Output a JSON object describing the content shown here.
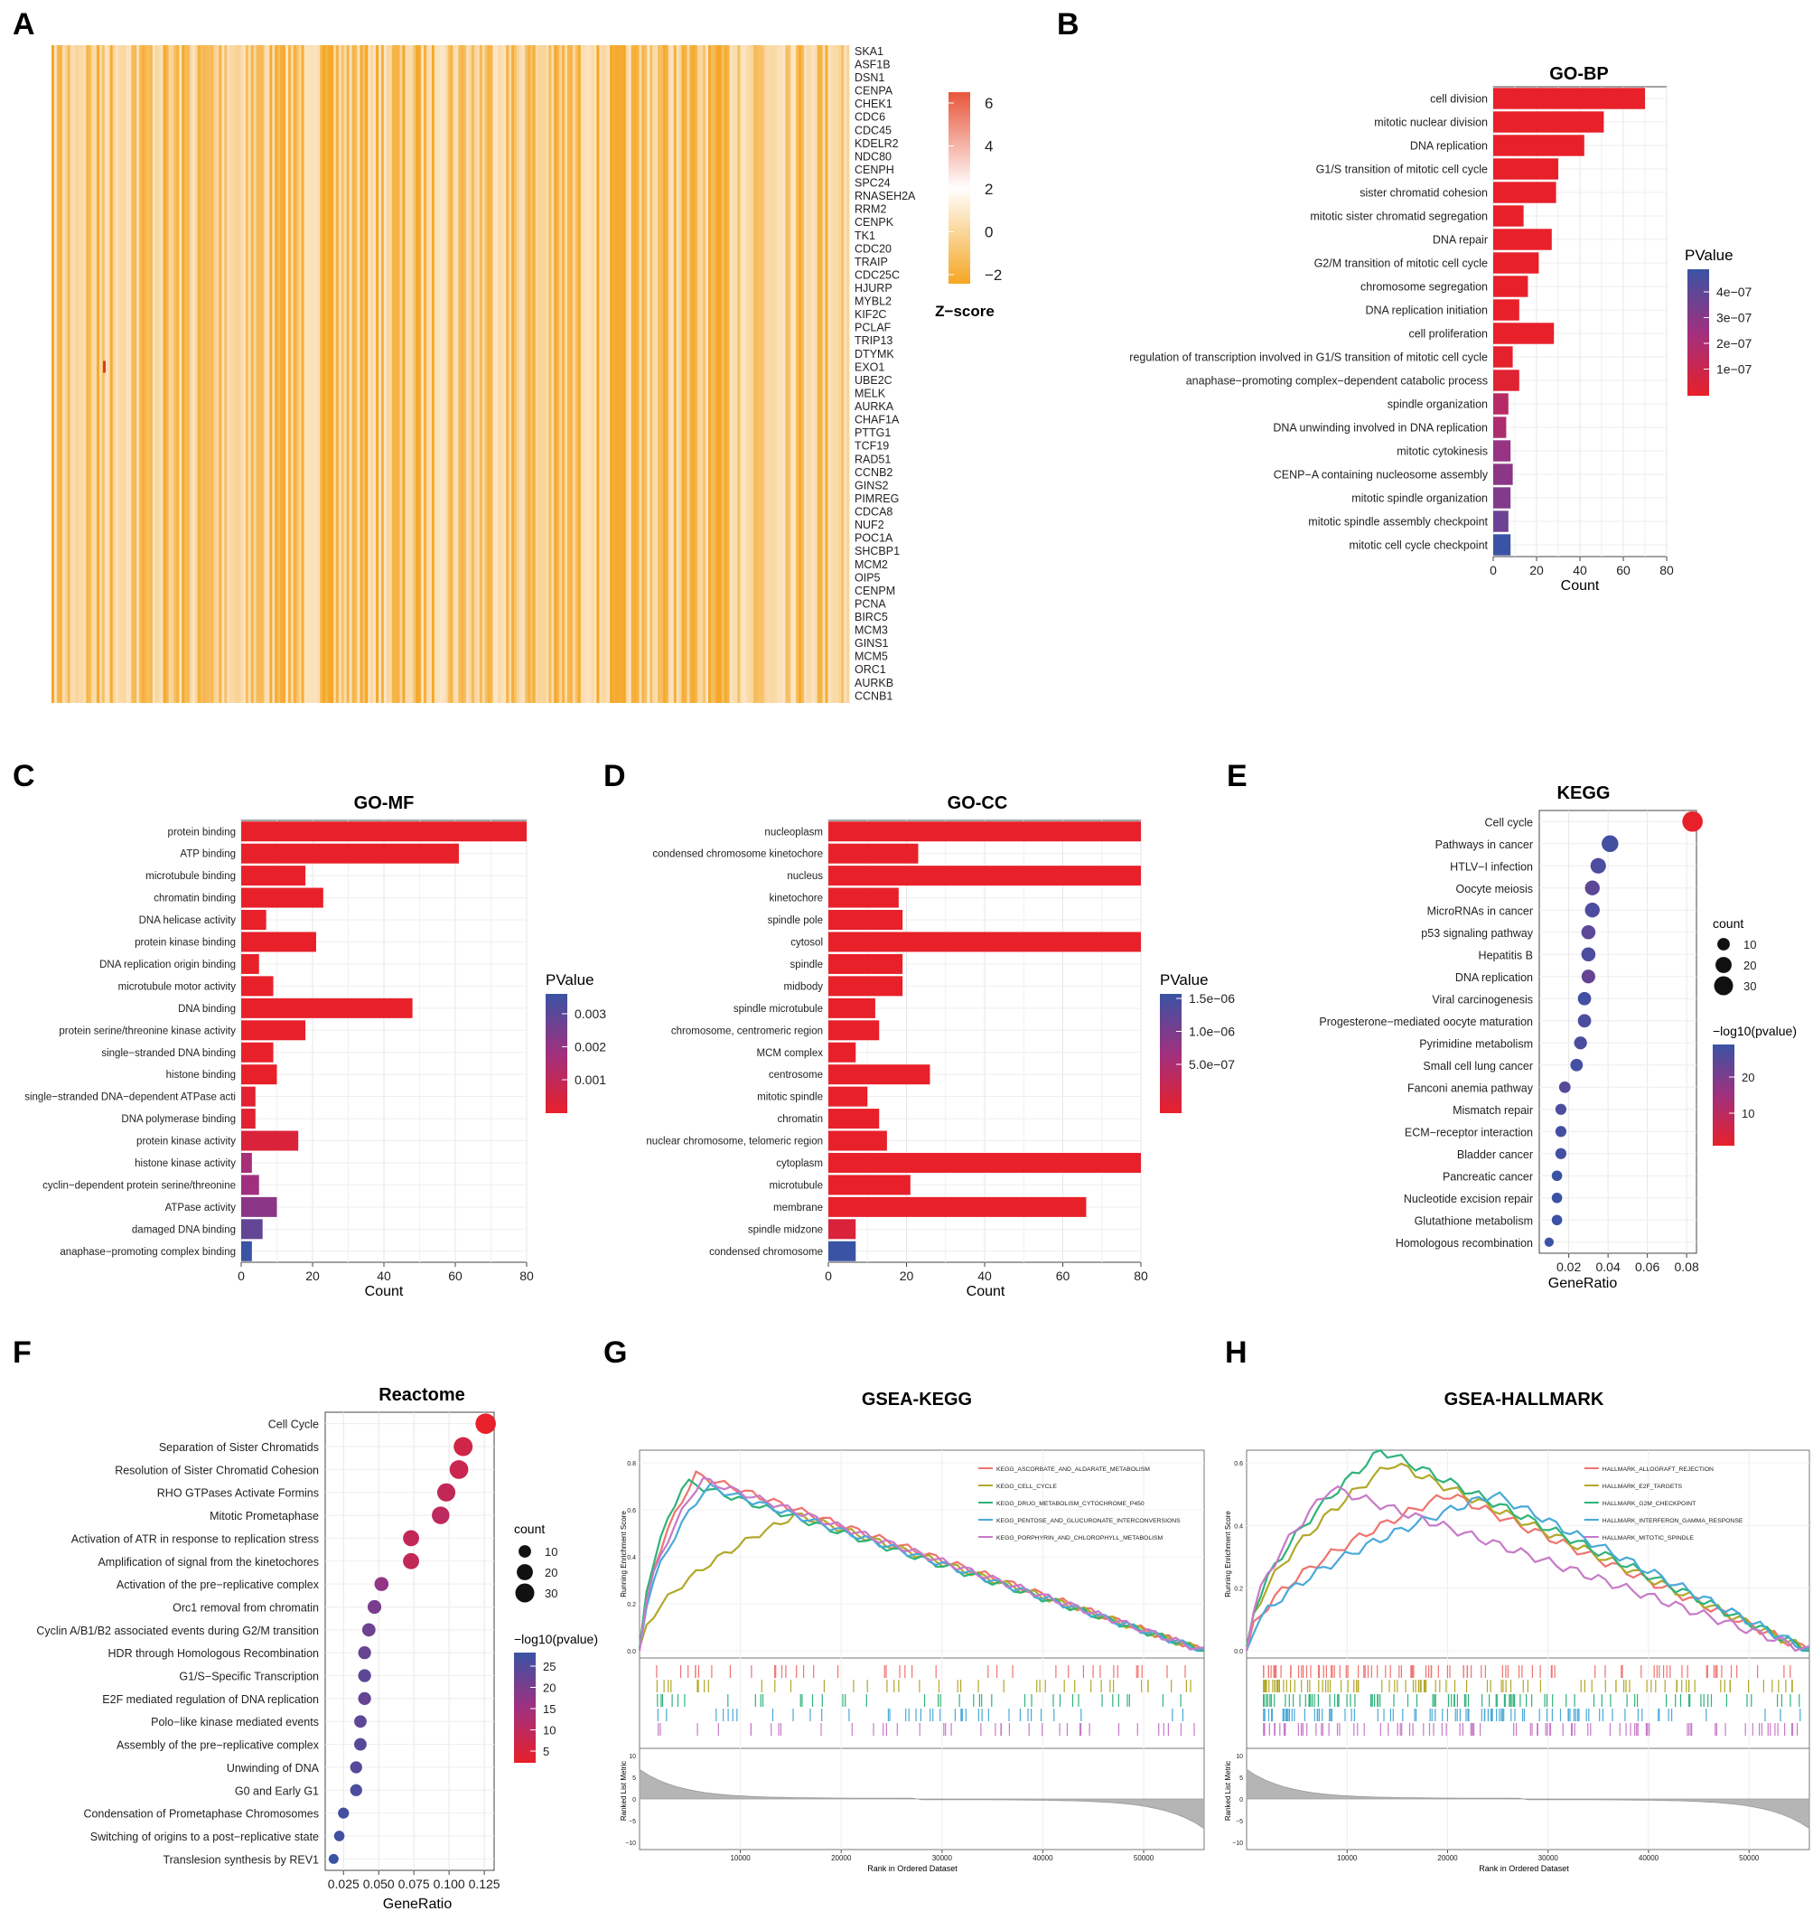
{
  "panels": {
    "A": {
      "letter": "A",
      "genes": [
        "SKA1",
        "ASF1B",
        "DSN1",
        "CENPA",
        "CHEK1",
        "CDC6",
        "CDC45",
        "KDELR2",
        "NDC80",
        "CENPH",
        "SPC24",
        "RNASEH2A",
        "RRM2",
        "CENPK",
        "TK1",
        "CDC20",
        "TRAIP",
        "CDC25C",
        "HJURP",
        "MYBL2",
        "KIF2C",
        "PCLAF",
        "TRIP13",
        "DTYMK",
        "EXO1",
        "UBE2C",
        "MELK",
        "AURKA",
        "CHAF1A",
        "PTTG1",
        "TCF19",
        "RAD51",
        "CCNB2",
        "GINS2",
        "PIMREG",
        "CDCA8",
        "NUF2",
        "POC1A",
        "SHCBP1",
        "MCM2",
        "OIP5",
        "CENPM",
        "PCNA",
        "BIRC5",
        "MCM3",
        "GINS1",
        "MCM5",
        "ORC1",
        "AURKB",
        "CCNB1"
      ],
      "legend_title": "Z−score",
      "legend_ticks": [
        "6",
        "4",
        "2",
        "0",
        "−2"
      ],
      "colors": {
        "low": "#f5a623",
        "mid": "#fbe6c6",
        "high": "#e8553a"
      }
    },
    "B": {
      "letter": "B",
      "title": "GO-BP",
      "terms": [
        "cell division",
        "mitotic nuclear division",
        "DNA replication",
        "G1/S transition of mitotic cell cycle",
        "sister chromatid cohesion",
        "mitotic sister chromatid segregation",
        "DNA repair",
        "G2/M transition of mitotic cell cycle",
        "chromosome segregation",
        "DNA replication initiation",
        "cell proliferation",
        "regulation of transcription involved in G1/S transition of mitotic cell cycle",
        "anaphase−promoting complex−dependent catabolic process",
        "spindle organization",
        "DNA unwinding involved in DNA replication",
        "mitotic cytokinesis",
        "CENP−A containing nucleosome assembly",
        "mitotic spindle organization",
        "mitotic spindle assembly checkpoint",
        "mitotic cell cycle checkpoint"
      ],
      "counts": [
        70,
        51,
        42,
        30,
        29,
        14,
        27,
        21,
        16,
        12,
        28,
        9,
        12,
        7,
        6,
        8,
        9,
        8,
        7,
        8
      ],
      "color_t": [
        0.0,
        0.0,
        0.0,
        0.0,
        0.0,
        0.0,
        0.0,
        0.0,
        0.0,
        0.0,
        0.0,
        0.02,
        0.05,
        0.35,
        0.4,
        0.55,
        0.6,
        0.65,
        0.75,
        1.0
      ],
      "xlabel": "Count",
      "xticks": [
        "0",
        "20",
        "40",
        "60",
        "80"
      ],
      "xmax": 80,
      "legend_title": "PValue",
      "legend_ticks": [
        "4e−07",
        "3e−07",
        "2e−07",
        "1e−07"
      ]
    },
    "C": {
      "letter": "C",
      "title": "GO-MF",
      "terms": [
        "protein binding",
        "ATP binding",
        "microtubule binding",
        "chromatin binding",
        "DNA helicase activity",
        "protein kinase binding",
        "DNA replication origin binding",
        "microtubule motor activity",
        "DNA binding",
        "protein serine/threonine kinase activity",
        "single−stranded DNA binding",
        "histone binding",
        "single−stranded DNA−dependent ATPase acti",
        "DNA polymerase binding",
        "protein kinase activity",
        "histone kinase activity",
        "cyclin−dependent protein serine/threonine",
        "ATPase activity",
        "damaged DNA binding",
        "anaphase−promoting complex binding"
      ],
      "counts": [
        80,
        61,
        18,
        23,
        7,
        21,
        5,
        9,
        48,
        18,
        9,
        10,
        4,
        4,
        16,
        3,
        5,
        10,
        6,
        3
      ],
      "color_t": [
        0,
        0,
        0,
        0,
        0,
        0,
        0,
        0,
        0,
        0,
        0,
        0,
        0.05,
        0.05,
        0.1,
        0.45,
        0.5,
        0.6,
        0.8,
        1.0
      ],
      "xlabel": "Count",
      "xticks": [
        "0",
        "20",
        "40",
        "60",
        "80"
      ],
      "xmax": 80,
      "legend_title": "PValue",
      "legend_ticks": [
        "0.003",
        "0.002",
        "0.001"
      ]
    },
    "D": {
      "letter": "D",
      "title": "GO-CC",
      "terms": [
        "nucleoplasm",
        "condensed chromosome kinetochore",
        "nucleus",
        "kinetochore",
        "spindle pole",
        "cytosol",
        "spindle",
        "midbody",
        "spindle microtubule",
        "chromosome, centromeric region",
        "MCM complex",
        "centrosome",
        "mitotic spindle",
        "chromatin",
        "nuclear chromosome, telomeric region",
        "cytoplasm",
        "microtubule",
        "membrane",
        "spindle midzone",
        "condensed chromosome"
      ],
      "counts": [
        80,
        23,
        80,
        18,
        19,
        80,
        19,
        19,
        12,
        13,
        7,
        26,
        10,
        13,
        15,
        80,
        21,
        66,
        7,
        7
      ],
      "color_t": [
        0,
        0,
        0,
        0,
        0,
        0,
        0,
        0,
        0,
        0,
        0,
        0,
        0,
        0,
        0,
        0,
        0,
        0,
        0.1,
        1.0
      ],
      "xlabel": "Count",
      "xticks": [
        "0",
        "20",
        "40",
        "60",
        "80"
      ],
      "xmax": 80,
      "legend_title": "PValue",
      "legend_ticks": [
        "1.5e−06",
        "1.0e−06",
        "5.0e−07"
      ]
    },
    "E": {
      "letter": "E",
      "title": "KEGG",
      "terms": [
        "Cell cycle",
        "Pathways in cancer",
        "HTLV−I infection",
        "Oocyte meiosis",
        "MicroRNAs in cancer",
        "p53 signaling pathway",
        "Hepatitis B",
        "DNA replication",
        "Viral carcinogenesis",
        "Progesterone−mediated oocyte maturation",
        "Pyrimidine metabolism",
        "Small cell lung cancer",
        "Fanconi anemia pathway",
        "Mismatch repair",
        "ECM−receptor interaction",
        "Bladder cancer",
        "Pancreatic cancer",
        "Nucleotide excision repair",
        "Glutathione metabolism",
        "Homologous recombination"
      ],
      "gene_ratio": [
        0.083,
        0.041,
        0.035,
        0.032,
        0.032,
        0.03,
        0.03,
        0.03,
        0.028,
        0.028,
        0.026,
        0.024,
        0.018,
        0.016,
        0.016,
        0.016,
        0.014,
        0.014,
        0.014,
        0.01
      ],
      "count": [
        36,
        22,
        18,
        16,
        16,
        14,
        14,
        13,
        12,
        12,
        11,
        10,
        8,
        7,
        7,
        7,
        6,
        6,
        6,
        4
      ],
      "neglog10p": [
        28,
        6,
        7,
        9,
        7,
        9,
        7,
        10,
        6,
        7,
        7,
        6,
        8,
        7,
        6,
        6,
        5,
        5,
        5,
        5
      ],
      "xlabel": "GeneRatio",
      "xticks": [
        "0.02",
        "0.04",
        "0.06",
        "0.08"
      ],
      "xrange": [
        0.005,
        0.085
      ],
      "size_title": "count",
      "size_ticks": [
        "10",
        "20",
        "30"
      ],
      "color_title": "−log10(pvalue)",
      "color_ticks": [
        "20",
        "10"
      ]
    },
    "F": {
      "letter": "F",
      "title": "Reactome",
      "terms": [
        "Cell Cycle",
        "Separation of Sister Chromatids",
        "Resolution of Sister Chromatid Cohesion",
        "RHO GTPases Activate Formins",
        "Mitotic Prometaphase",
        "Activation of ATR in response to replication stress",
        "Amplification of signal from the kinetochores",
        "Activation of the pre−replicative complex",
        "Orc1 removal from chromatin",
        "Cyclin A/B1/B2 associated events during G2/M transition",
        "HDR through Homologous Recombination",
        "G1/S−Specific Transcription",
        "E2F mediated regulation of DNA replication",
        "Polo−like kinase mediated events",
        "Assembly of the pre−replicative complex",
        "Unwinding of DNA",
        "G0 and Early G1",
        "Condensation of Prometaphase Chromosomes",
        "Switching of origins to a post−replicative state",
        "Translesion synthesis by REV1"
      ],
      "gene_ratio": [
        0.126,
        0.11,
        0.107,
        0.098,
        0.094,
        0.073,
        0.073,
        0.052,
        0.047,
        0.043,
        0.04,
        0.04,
        0.04,
        0.037,
        0.037,
        0.034,
        0.034,
        0.025,
        0.022,
        0.018
      ],
      "count": [
        36,
        30,
        29,
        27,
        25,
        20,
        20,
        14,
        13,
        12,
        11,
        11,
        11,
        10,
        10,
        9,
        9,
        7,
        6,
        5
      ],
      "neglog10p": [
        28,
        24,
        23,
        22,
        21,
        22,
        22,
        15,
        12,
        11,
        10,
        9,
        10,
        9,
        8,
        8,
        7,
        6,
        6,
        5
      ],
      "xlabel": "GeneRatio",
      "xticks": [
        "0.025",
        "0.050",
        "0.075",
        "0.100",
        "0.125"
      ],
      "xrange": [
        0.012,
        0.132
      ],
      "size_title": "count",
      "size_ticks": [
        "10",
        "20",
        "30"
      ],
      "color_title": "−log10(pvalue)",
      "color_ticks": [
        "25",
        "20",
        "15",
        "10",
        "5"
      ]
    },
    "G": {
      "letter": "G",
      "title": "GSEA-KEGG",
      "ylabel_top": "Running Enrichment Score",
      "ylabel_bottom": "Ranked List Metric",
      "xlabel": "Rank in Ordered Dataset",
      "yticks_top": [
        "0.8",
        "0.6",
        "0.4",
        "0.2",
        "0.0"
      ],
      "yticks_bottom": [
        "10",
        "5",
        "0",
        "−5",
        "−10"
      ],
      "xticks": [
        "10000",
        "20000",
        "30000",
        "40000",
        "50000"
      ],
      "series": [
        {
          "name": "KEGG_ASCORBATE_AND_ALDARATE_METABOLISM",
          "color": "#f0736f",
          "peak": 0.75,
          "peak_at": 0.1
        },
        {
          "name": "KEGG_CELL_CYCLE",
          "color": "#b2a82a",
          "peak": 0.58,
          "peak_at": 0.28
        },
        {
          "name": "KEGG_DRUG_METABOLISM_CYTOCHROME_P450",
          "color": "#2fb37a",
          "peak": 0.72,
          "peak_at": 0.08
        },
        {
          "name": "KEGG_PENTOSE_AND_GLUCURONATE_INTERCONVERSIONS",
          "color": "#4aa9d8",
          "peak": 0.7,
          "peak_at": 0.12
        },
        {
          "name": "KEGG_PORPHYRIN_AND_CHLOROPHYLL_METABOLISM",
          "color": "#c77ac8",
          "peak": 0.73,
          "peak_at": 0.11
        }
      ]
    },
    "H": {
      "letter": "H",
      "title": "GSEA-HALLMARK",
      "ylabel_top": "Running Enrichment Score",
      "ylabel_bottom": "Ranked List Metric",
      "xlabel": "Rank in Ordered Dataset",
      "yticks_top": [
        "0.6",
        "0.4",
        "0.2",
        "0.0"
      ],
      "yticks_bottom": [
        "10",
        "5",
        "0",
        "−5",
        "−10"
      ],
      "xticks": [
        "10000",
        "20000",
        "30000",
        "40000",
        "50000"
      ],
      "series": [
        {
          "name": "HALLMARK_ALLOGRAFT_REJECTION",
          "color": "#f0736f",
          "peak": 0.5,
          "peak_at": 0.36
        },
        {
          "name": "HALLMARK_E2F_TARGETS",
          "color": "#b2a82a",
          "peak": 0.6,
          "peak_at": 0.26
        },
        {
          "name": "HALLMARK_G2M_CHECKPOINT",
          "color": "#2fb37a",
          "peak": 0.64,
          "peak_at": 0.24
        },
        {
          "name": "HALLMARK_INTERFERON_GAMMA_RESPONSE",
          "color": "#4aa9d8",
          "peak": 0.5,
          "peak_at": 0.44
        },
        {
          "name": "HALLMARK_MITOTIC_SPINDLE",
          "color": "#c77ac8",
          "peak": 0.52,
          "peak_at": 0.15
        }
      ]
    }
  }
}
